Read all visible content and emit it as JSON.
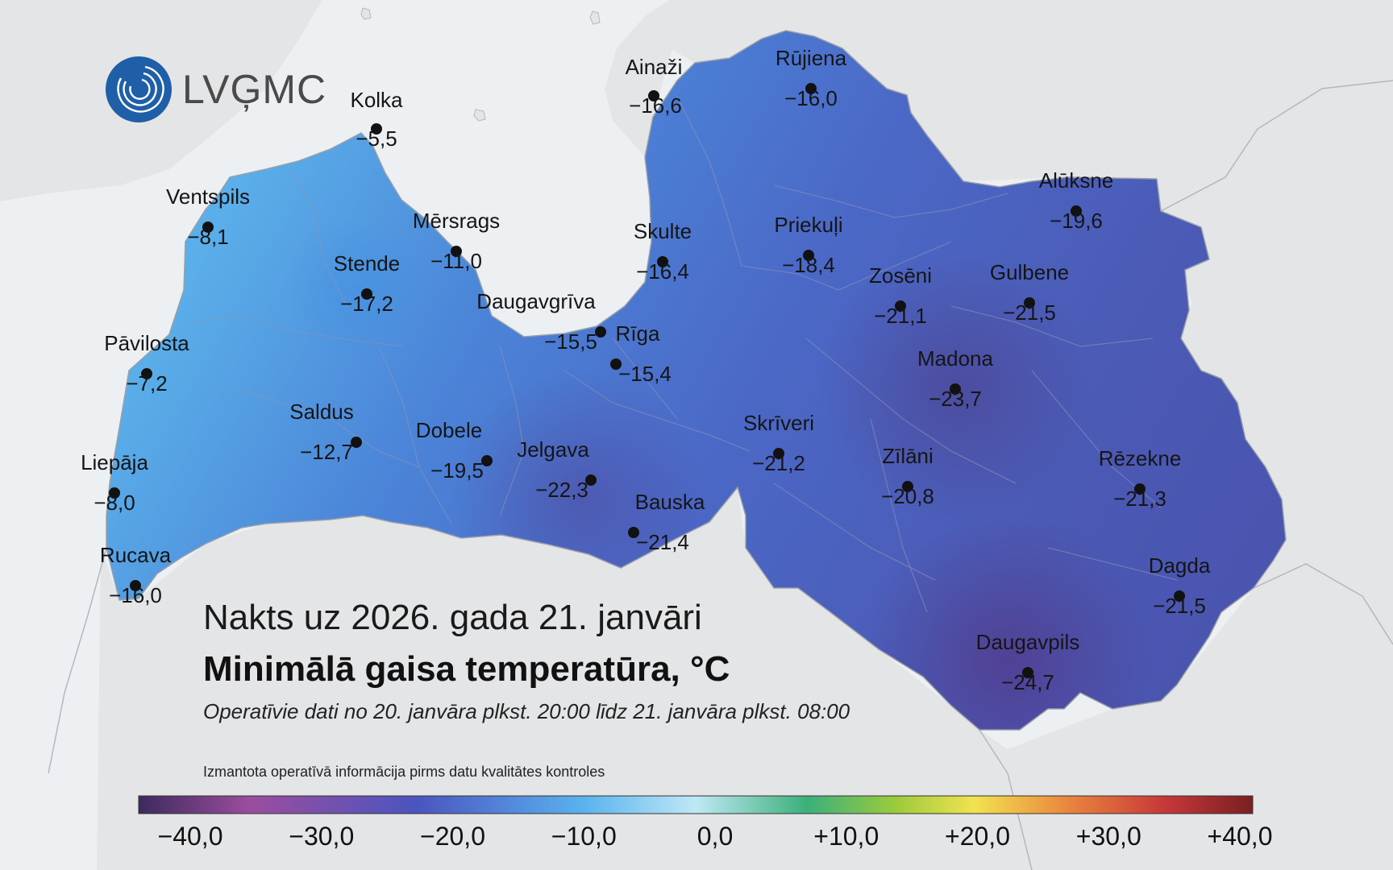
{
  "logo": {
    "text": "LVĢMC",
    "colors": [
      "#1f5fa8",
      "#4a4a4a"
    ]
  },
  "map": {
    "title_date": "Nakts uz 2026. gada 21. janvāri",
    "title": "Minimālā gaisa temperatūra, °C",
    "period": "Operatīvie dati no 20. janvāra plkst. 20:00 līdz 21. janvāra plkst. 08:00",
    "disclaimer": "Izmantota operatīvā informācija pirms datu kvalitātes kontroles",
    "colors": {
      "background": "#e6e7e8",
      "sea": "#edf0f3",
      "border": "#9aa0a8"
    },
    "color_scale": {
      "min": -40,
      "max": 40,
      "stops": [
        "#3d2a5c",
        "#9b4d9e",
        "#4a55c0",
        "#5ab3ee",
        "#bfe8f5",
        "#3bb07a",
        "#9ccb3c",
        "#f2e250",
        "#eb8a3e",
        "#c8383a",
        "#7a1f22"
      ],
      "tick_labels": [
        "−40,0",
        "−30,0",
        "−20,0",
        "−10,0",
        "0,0",
        "+10,0",
        "+20,0",
        "+30,0",
        "+40,0"
      ]
    },
    "stations": [
      {
        "name": "Kolka",
        "value": "−5,5",
        "temp": -5.5
      },
      {
        "name": "Ainaži",
        "value": "−16,6",
        "temp": -16.6
      },
      {
        "name": "Rūjiena",
        "value": "−16,0",
        "temp": -16.0
      },
      {
        "name": "Ventspils",
        "value": "−8,1",
        "temp": -8.1
      },
      {
        "name": "Mērsrags",
        "value": "−11,0",
        "temp": -11.0
      },
      {
        "name": "Skulte",
        "value": "−16,4",
        "temp": -16.4
      },
      {
        "name": "Priekuļi",
        "value": "−18,4",
        "temp": -18.4
      },
      {
        "name": "Alūksne",
        "value": "−19,6",
        "temp": -19.6
      },
      {
        "name": "Stende",
        "value": "−17,2",
        "temp": -17.2
      },
      {
        "name": "Zosēni",
        "value": "−21,1",
        "temp": -21.1
      },
      {
        "name": "Gulbene",
        "value": "−21,5",
        "temp": -21.5
      },
      {
        "name": "Daugavgrīva",
        "value": "−15,5",
        "temp": -15.5
      },
      {
        "name": "Rīga",
        "value": "−15,4",
        "temp": -15.4
      },
      {
        "name": "Pāvilosta",
        "value": "−7,2",
        "temp": -7.2
      },
      {
        "name": "Madona",
        "value": "−23,7",
        "temp": -23.7
      },
      {
        "name": "Saldus",
        "value": "−12,7",
        "temp": -12.7
      },
      {
        "name": "Dobele",
        "value": "−19,5",
        "temp": -19.5
      },
      {
        "name": "Jelgava",
        "value": "−22,3",
        "temp": -22.3
      },
      {
        "name": "Skrīveri",
        "value": "−21,2",
        "temp": -21.2
      },
      {
        "name": "Zīlāni",
        "value": "−20,8",
        "temp": -20.8
      },
      {
        "name": "Rēzekne",
        "value": "−21,3",
        "temp": -21.3
      },
      {
        "name": "Liepāja",
        "value": "−8,0",
        "temp": -8.0
      },
      {
        "name": "Bauska",
        "value": "−21,4",
        "temp": -21.4
      },
      {
        "name": "Rucava",
        "value": "−16,0",
        "temp": -16.0
      },
      {
        "name": "Dagda",
        "value": "−21,5",
        "temp": -21.5
      },
      {
        "name": "Daugavpils",
        "value": "−24,7",
        "temp": -24.7
      }
    ]
  }
}
